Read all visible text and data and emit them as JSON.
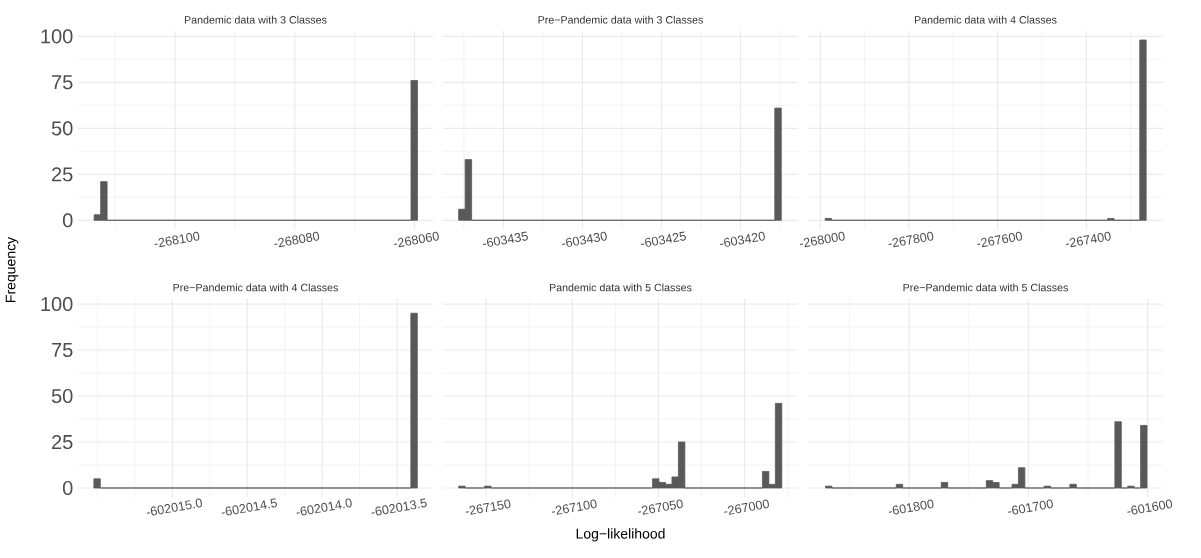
{
  "chart_data": [
    {
      "type": "histogram",
      "title": "Pandemic data with 3 Classes",
      "ylabel": "Frequency",
      "color": "#595959",
      "grid": true,
      "bins": [
        -268113.5,
        -268112.42,
        -268111.34,
        -268060.58,
        -268059.5
      ],
      "values": [
        3,
        21,
        0,
        76
      ],
      "xlim": [
        -268116.2,
        -268056.9
      ],
      "ylim": [
        -4.9,
        102.9
      ],
      "xticks": [
        {
          "value": -268110,
          "label": null
        },
        -268100,
        {
          "value": -268090,
          "label": null
        },
        -268080,
        {
          "value": -268070,
          "label": null
        },
        -268060
      ],
      "yticks": [
        0,
        {
          "value": 12.5,
          "label": null
        },
        25,
        {
          "value": 37.5,
          "label": null
        },
        50,
        {
          "value": 62.5,
          "label": null
        },
        75,
        {
          "value": 87.5,
          "label": null
        },
        100
      ]
    },
    {
      "type": "histogram",
      "title": "Pre−Pandemic data with 3 Classes",
      "color": "#595959",
      "grid": true,
      "tick_labels": "x",
      "bins": [
        -603437.83,
        -603437.42,
        -603437.01,
        -603417.83,
        -603417.42
      ],
      "values": [
        6,
        33,
        0,
        61
      ],
      "xlim": [
        -603438.82,
        -603416.36
      ],
      "ylim": [
        -4.9,
        102.9
      ],
      "xticks": [
        {
          "value": -603437.5,
          "label": null
        },
        -603435,
        {
          "value": -603432.5,
          "label": null
        },
        -603430,
        {
          "value": -603427.5,
          "label": null
        },
        -603425,
        {
          "value": -603422.5,
          "label": null
        },
        -603420,
        {
          "value": -603417.5,
          "label": null
        }
      ],
      "yticks": [
        0,
        {
          "value": 12.5,
          "label": null
        },
        25,
        {
          "value": 37.5,
          "label": null
        },
        50,
        {
          "value": 62.5,
          "label": null
        },
        75,
        {
          "value": 87.5,
          "label": null
        },
        100
      ]
    },
    {
      "type": "histogram",
      "title": "Pandemic data with 4 Classes",
      "color": "#595959",
      "grid": true,
      "tick_labels": "x",
      "bins": [
        -267989,
        -267974.52,
        -267351.88,
        -267337.4,
        -267279.48,
        -267265
      ],
      "values": [
        1,
        0,
        1,
        0,
        98
      ],
      "xlim": [
        -268027.7,
        -267227
      ],
      "ylim": [
        -4.9,
        102.9
      ],
      "xticks": [
        -268000,
        {
          "value": -267900,
          "label": null
        },
        -267800,
        {
          "value": -267700,
          "label": null
        },
        -267600,
        {
          "value": -267500,
          "label": null
        },
        -267400,
        {
          "value": -267300,
          "label": null
        }
      ],
      "yticks": [
        0,
        {
          "value": 12.5,
          "label": null
        },
        25,
        {
          "value": 37.5,
          "label": null
        },
        50,
        {
          "value": 62.5,
          "label": null
        },
        75,
        {
          "value": 87.5,
          "label": null
        },
        100
      ]
    },
    {
      "type": "histogram",
      "title": "Pre−Pandemic data with 4 Classes",
      "color": "#595959",
      "grid": true,
      "bins": [
        -602015.524,
        -602015.481,
        -602013.408,
        -602013.365
      ],
      "values": [
        5,
        0,
        95
      ],
      "xlim": [
        -602015.63,
        -602013.26
      ],
      "ylim": [
        -4.9,
        102.9
      ],
      "xticks": [
        {
          "value": -602015.5,
          "label": null
        },
        {
          "value": -602015.25,
          "label": null
        },
        {
          "value": -602015.0,
          "label": "-602015.0"
        },
        {
          "value": -602014.75,
          "label": null
        },
        -602014.5,
        {
          "value": -602014.25,
          "label": null
        },
        {
          "value": -602014.0,
          "label": "-602014.0"
        },
        {
          "value": -602013.75,
          "label": null
        },
        -602013.5
      ],
      "yticks": [
        0,
        {
          "value": 12.5,
          "label": null
        },
        25,
        {
          "value": 37.5,
          "label": null
        },
        50,
        {
          "value": 62.5,
          "label": null
        },
        75,
        {
          "value": 87.5,
          "label": null
        },
        100
      ]
    },
    {
      "type": "histogram",
      "title": "Pandemic data with 5 Classes",
      "xlabel": "Log−likelihood",
      "color": "#595959",
      "grid": true,
      "tick_labels": "x",
      "bins": [
        -267165.9,
        -267162.15,
        -267150.9,
        -267147.15,
        -267053.4,
        -267049.65,
        -267045.9,
        -267042.15,
        -267038.4,
        -267034.65,
        -266989.65,
        -266985.9,
        -266982.15,
        -266978.4
      ],
      "values": [
        1,
        0,
        1,
        0,
        5,
        3,
        2,
        6,
        25,
        0,
        9,
        2,
        46
      ],
      "xlim": [
        -267175,
        -266969
      ],
      "ylim": [
        -4.9,
        102.9
      ],
      "xticks": [
        -267150,
        {
          "value": -267125,
          "label": null
        },
        -267100,
        {
          "value": -267075,
          "label": null
        },
        -267050,
        {
          "value": -267025,
          "label": null
        },
        -267000,
        {
          "value": -266975,
          "label": null
        }
      ],
      "yticks": [
        0,
        {
          "value": 12.5,
          "label": null
        },
        25,
        {
          "value": 37.5,
          "label": null
        },
        50,
        {
          "value": 62.5,
          "label": null
        },
        75,
        {
          "value": 87.5,
          "label": null
        },
        100
      ]
    },
    {
      "type": "histogram",
      "title": "Pre−Pandemic data with 5 Classes",
      "color": "#595959",
      "grid": true,
      "tick_labels": "x",
      "bins": [
        -601870.1,
        -601864.71,
        -601810.81,
        -601805.42,
        -601773.08,
        -601767.69,
        -601735.35,
        -601729.96,
        -601724.57,
        -601713.79,
        -601708.4,
        -601703.01,
        -601686.84,
        -601681.45,
        -601665.28,
        -601659.89,
        -601627.55,
        -601622.16,
        -601616.77,
        -601611.38,
        -601605.99,
        -601600.6
      ],
      "values": [
        1,
        0,
        2,
        0,
        3,
        0,
        4,
        3,
        0,
        2,
        11,
        0,
        1,
        0,
        2,
        0,
        36,
        0,
        1,
        0,
        34
      ],
      "xlim": [
        -601884.8,
        -601587.2
      ],
      "ylim": [
        -4.9,
        102.9
      ],
      "xticks": [
        {
          "value": -601850,
          "label": null
        },
        -601800,
        {
          "value": -601750,
          "label": null
        },
        -601700,
        {
          "value": -601650,
          "label": null
        },
        -601600
      ],
      "yticks": [
        0,
        {
          "value": 12.5,
          "label": null
        },
        25,
        {
          "value": 37.5,
          "label": null
        },
        50,
        {
          "value": 62.5,
          "label": null
        },
        75,
        {
          "value": 87.5,
          "label": null
        },
        100
      ]
    }
  ]
}
